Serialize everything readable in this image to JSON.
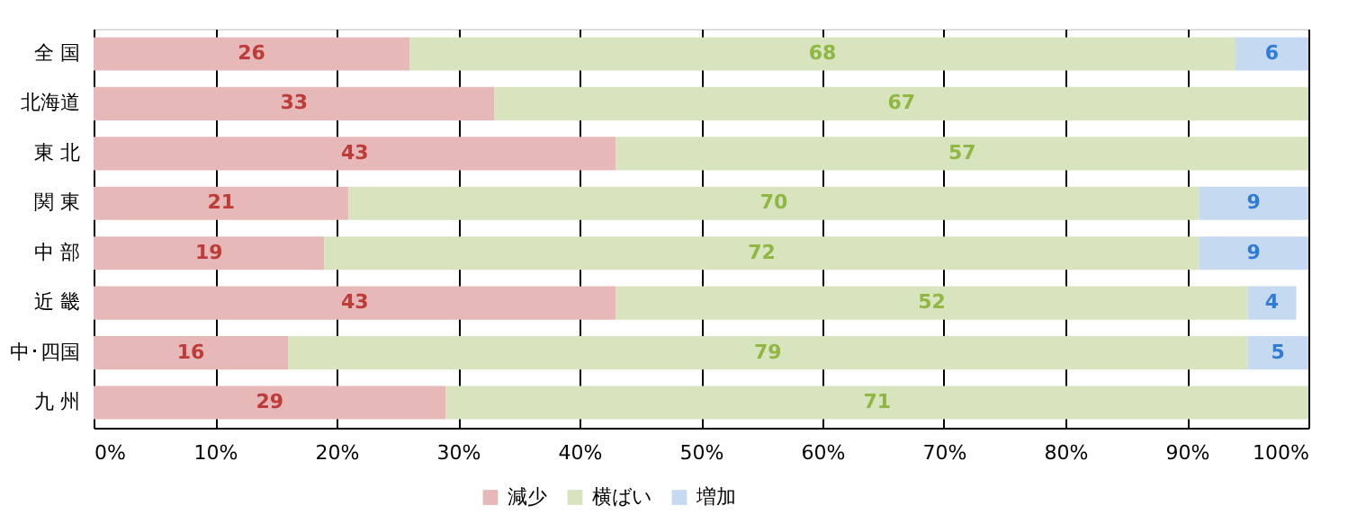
{
  "chart_data": {
    "type": "bar",
    "orientation": "horizontal",
    "stacked": true,
    "categories": [
      "全 国",
      "北海道",
      "東 北",
      "関 東",
      "中 部",
      "近 畿",
      "中･四国",
      "九 州"
    ],
    "series": [
      {
        "name": "減少",
        "color": "#e6b8b7",
        "values": [
          26,
          33,
          43,
          21,
          19,
          43,
          16,
          29
        ]
      },
      {
        "name": "横ばい",
        "color": "#d7e4bd",
        "values": [
          68,
          67,
          57,
          70,
          72,
          52,
          79,
          71
        ]
      },
      {
        "name": "増加",
        "color": "#c5d9f1",
        "values": [
          6,
          null,
          null,
          9,
          9,
          4,
          5,
          null
        ]
      }
    ],
    "xlim": [
      0,
      100
    ],
    "xticks": [
      {
        "value": 0,
        "label": "0%"
      },
      {
        "value": 10,
        "label": "10%"
      },
      {
        "value": 20,
        "label": "20%"
      },
      {
        "value": 30,
        "label": "30%"
      },
      {
        "value": 40,
        "label": "40%"
      },
      {
        "value": 50,
        "label": "50%"
      },
      {
        "value": 60,
        "label": "60%"
      },
      {
        "value": 70,
        "label": "70%"
      },
      {
        "value": 80,
        "label": "80%"
      },
      {
        "value": 90,
        "label": "90%"
      },
      {
        "value": 100,
        "label": "100%"
      }
    ],
    "grid": "x",
    "legend": "bottom",
    "data_labels": true
  }
}
